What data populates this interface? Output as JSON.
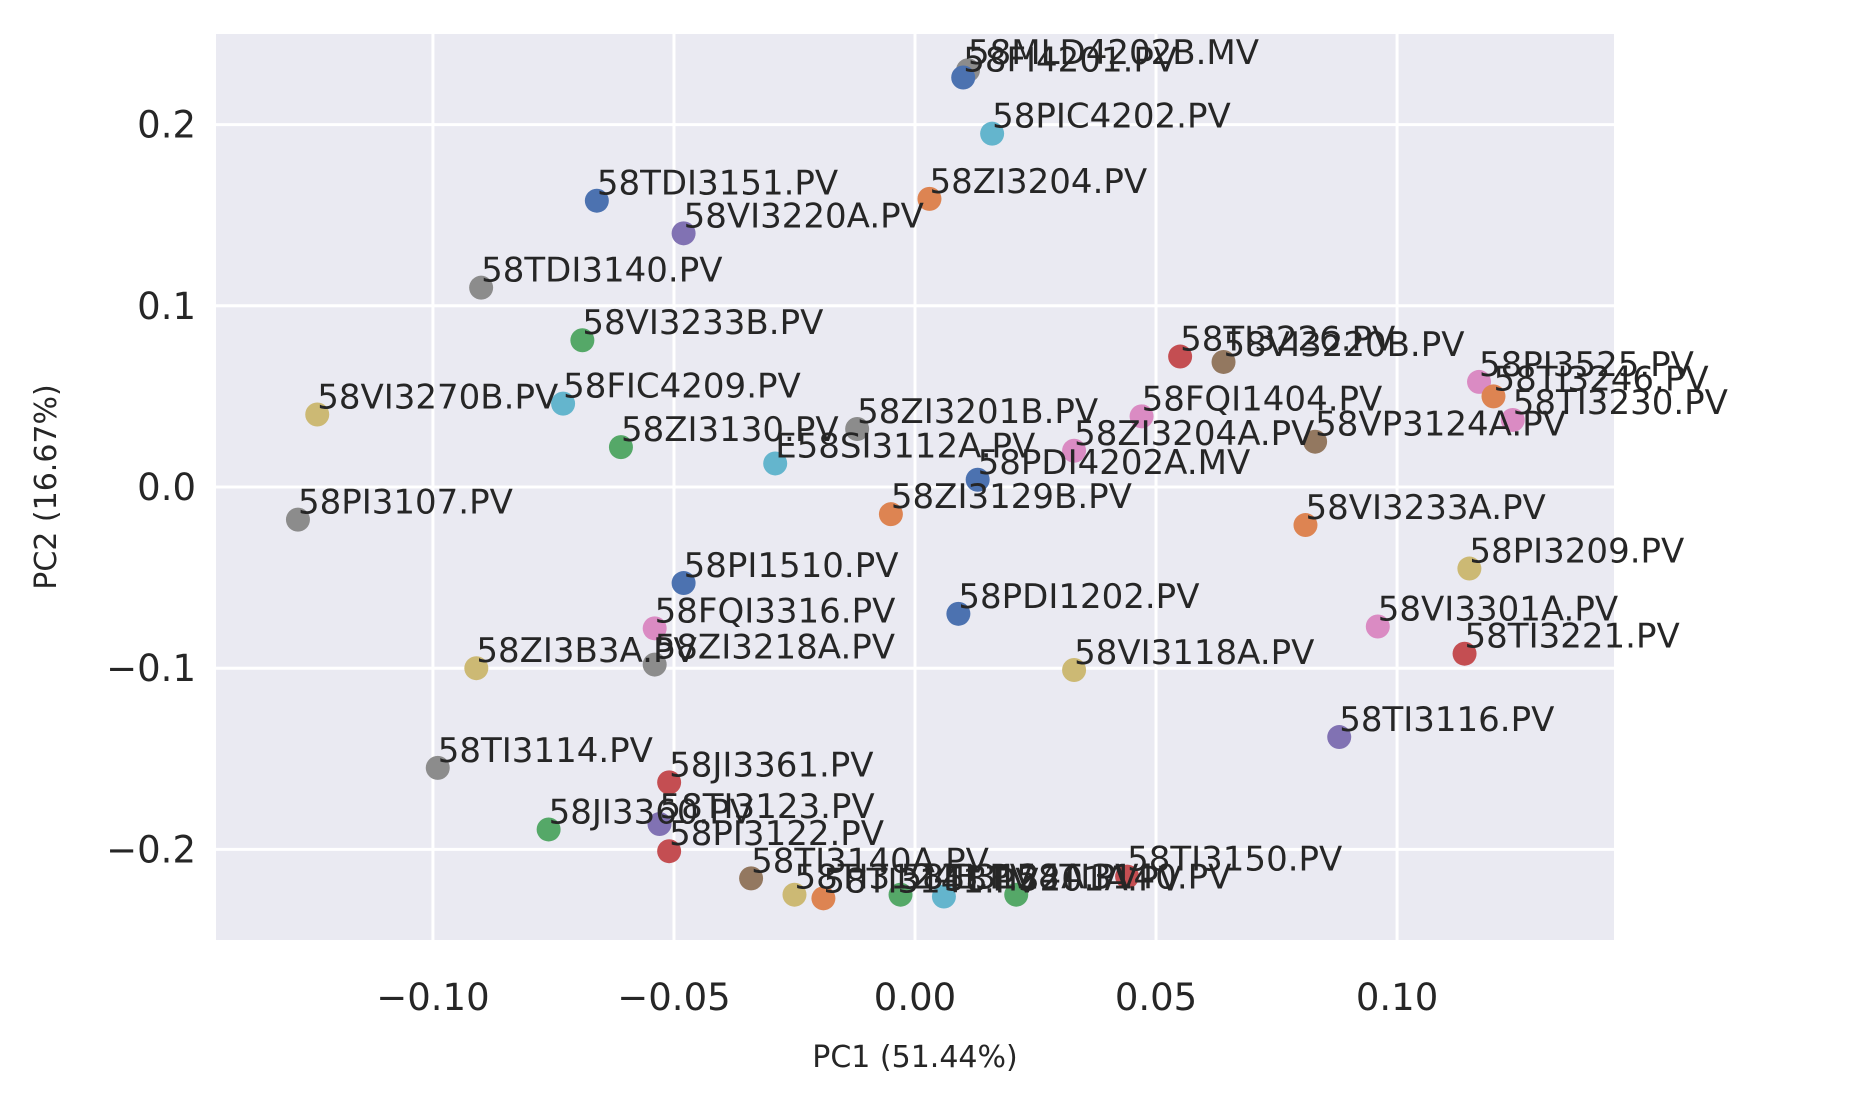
{
  "chart_data": {
    "type": "scatter",
    "title": "",
    "xlabel": "PC1 (51.44%)",
    "ylabel": "PC2 (16.67%)",
    "xlim": [
      -0.145,
      0.145
    ],
    "ylim": [
      -0.25,
      0.25
    ],
    "xticks": [
      -0.1,
      -0.05,
      0.0,
      0.05,
      0.1
    ],
    "xtick_labels": [
      "−0.10",
      "−0.05",
      "0.00",
      "0.05",
      "0.10"
    ],
    "yticks": [
      -0.2,
      -0.1,
      0.0,
      0.1,
      0.2
    ],
    "ytick_labels": [
      "−0.2",
      "−0.1",
      "0.0",
      "0.1",
      "0.2"
    ],
    "grid": true,
    "background": "#eaeaf2",
    "palette": [
      "#4c72b0",
      "#dd8452",
      "#55a868",
      "#c44e52",
      "#8172b3",
      "#937860",
      "#da8bc3",
      "#8c8c8c",
      "#ccb974",
      "#64b5cd"
    ],
    "points": [
      {
        "label": "58MLD4202B.MV",
        "x": 0.011,
        "y": 0.23,
        "color": "#8c8c8c"
      },
      {
        "label": "58FI4201.PV",
        "x": 0.01,
        "y": 0.226,
        "color": "#4c72b0"
      },
      {
        "label": "58PIC4202.PV",
        "x": 0.016,
        "y": 0.195,
        "color": "#64b5cd"
      },
      {
        "label": "58ZI3204.PV",
        "x": 0.003,
        "y": 0.159,
        "color": "#dd8452"
      },
      {
        "label": "58TDI3151.PV",
        "x": -0.066,
        "y": 0.158,
        "color": "#4c72b0"
      },
      {
        "label": "58VI3220A.PV",
        "x": -0.048,
        "y": 0.14,
        "color": "#8172b3"
      },
      {
        "label": "58TDI3140.PV",
        "x": -0.09,
        "y": 0.11,
        "color": "#8c8c8c"
      },
      {
        "label": "58VI3233B.PV",
        "x": -0.069,
        "y": 0.081,
        "color": "#55a868"
      },
      {
        "label": "58FIC4209.PV",
        "x": -0.073,
        "y": 0.046,
        "color": "#64b5cd"
      },
      {
        "label": "58TI3226.PV",
        "x": 0.055,
        "y": 0.072,
        "color": "#c44e52"
      },
      {
        "label": "58VI3220B.PV",
        "x": 0.064,
        "y": 0.069,
        "color": "#937860"
      },
      {
        "label": "58PI3525.PV",
        "x": 0.117,
        "y": 0.058,
        "color": "#da8bc3"
      },
      {
        "label": "58TI3246.PV",
        "x": 0.12,
        "y": 0.05,
        "color": "#dd8452"
      },
      {
        "label": "58TI3230.PV",
        "x": 0.124,
        "y": 0.037,
        "color": "#da8bc3"
      },
      {
        "label": "58VI3270B.PV",
        "x": -0.124,
        "y": 0.04,
        "color": "#ccb974"
      },
      {
        "label": "58ZI3130.PV",
        "x": -0.061,
        "y": 0.022,
        "color": "#55a868"
      },
      {
        "label": "58ZI3201B.PV",
        "x": -0.012,
        "y": 0.032,
        "color": "#8c8c8c"
      },
      {
        "label": "58FQI1404.PV",
        "x": 0.047,
        "y": 0.039,
        "color": "#da8bc3"
      },
      {
        "label": "58ZI3204A.PV",
        "x": 0.033,
        "y": 0.02,
        "color": "#da8bc3"
      },
      {
        "label": "58VP3124A.PV",
        "x": 0.083,
        "y": 0.025,
        "color": "#937860"
      },
      {
        "label": "E58SI3112A.PV",
        "x": -0.029,
        "y": 0.013,
        "color": "#64b5cd"
      },
      {
        "label": "58PDI4202A.MV",
        "x": 0.013,
        "y": 0.004,
        "color": "#4c72b0"
      },
      {
        "label": "58PI3107.PV",
        "x": -0.128,
        "y": -0.018,
        "color": "#8c8c8c"
      },
      {
        "label": "58ZI3129B.PV",
        "x": -0.005,
        "y": -0.015,
        "color": "#dd8452"
      },
      {
        "label": "58VI3233A.PV",
        "x": 0.081,
        "y": -0.021,
        "color": "#dd8452"
      },
      {
        "label": "58PI3209.PV",
        "x": 0.115,
        "y": -0.045,
        "color": "#ccb974"
      },
      {
        "label": "58PI1510.PV",
        "x": -0.048,
        "y": -0.053,
        "color": "#4c72b0"
      },
      {
        "label": "58PDI1202.PV",
        "x": 0.009,
        "y": -0.07,
        "color": "#4c72b0"
      },
      {
        "label": "58FQI3316.PV",
        "x": -0.054,
        "y": -0.078,
        "color": "#da8bc3"
      },
      {
        "label": "58VI3301A.PV",
        "x": 0.096,
        "y": -0.077,
        "color": "#da8bc3"
      },
      {
        "label": "58TI3221.PV",
        "x": 0.114,
        "y": -0.092,
        "color": "#c44e52"
      },
      {
        "label": "58ZI3B3A.PV",
        "x": -0.091,
        "y": -0.1,
        "color": "#ccb974"
      },
      {
        "label": "58ZI3218A.PV",
        "x": -0.054,
        "y": -0.098,
        "color": "#8c8c8c"
      },
      {
        "label": "58VI3118A.PV",
        "x": 0.033,
        "y": -0.101,
        "color": "#ccb974"
      },
      {
        "label": "58TI3116.PV",
        "x": 0.088,
        "y": -0.138,
        "color": "#8172b3"
      },
      {
        "label": "58TI3114.PV",
        "x": -0.099,
        "y": -0.155,
        "color": "#8c8c8c"
      },
      {
        "label": "58JI3361.PV",
        "x": -0.051,
        "y": -0.163,
        "color": "#c44e52"
      },
      {
        "label": "58JI3360.PV",
        "x": -0.076,
        "y": -0.189,
        "color": "#55a868"
      },
      {
        "label": "58TI3123.PV",
        "x": -0.053,
        "y": -0.186,
        "color": "#8172b3"
      },
      {
        "label": "58PI3122.PV",
        "x": -0.051,
        "y": -0.201,
        "color": "#c44e52"
      },
      {
        "label": "58TI3140A.PV",
        "x": -0.034,
        "y": -0.216,
        "color": "#937860"
      },
      {
        "label": "58TI3150.PV",
        "x": 0.044,
        "y": -0.215,
        "color": "#c44e52"
      },
      {
        "label": "58TI3140.PV",
        "x": 0.021,
        "y": -0.225,
        "color": "#55a868"
      },
      {
        "label": "58TI3124B.PV",
        "x": -0.025,
        "y": -0.225,
        "color": "#ccb974"
      },
      {
        "label": "58TI3201A.PV",
        "x": 0.006,
        "y": -0.226,
        "color": "#64b5cd"
      },
      {
        "label": "58TI3141.PV",
        "x": -0.019,
        "y": -0.227,
        "color": "#dd8452"
      },
      {
        "label": "58TI3124A.PV",
        "x": -0.003,
        "y": -0.225,
        "color": "#55a868"
      }
    ]
  }
}
